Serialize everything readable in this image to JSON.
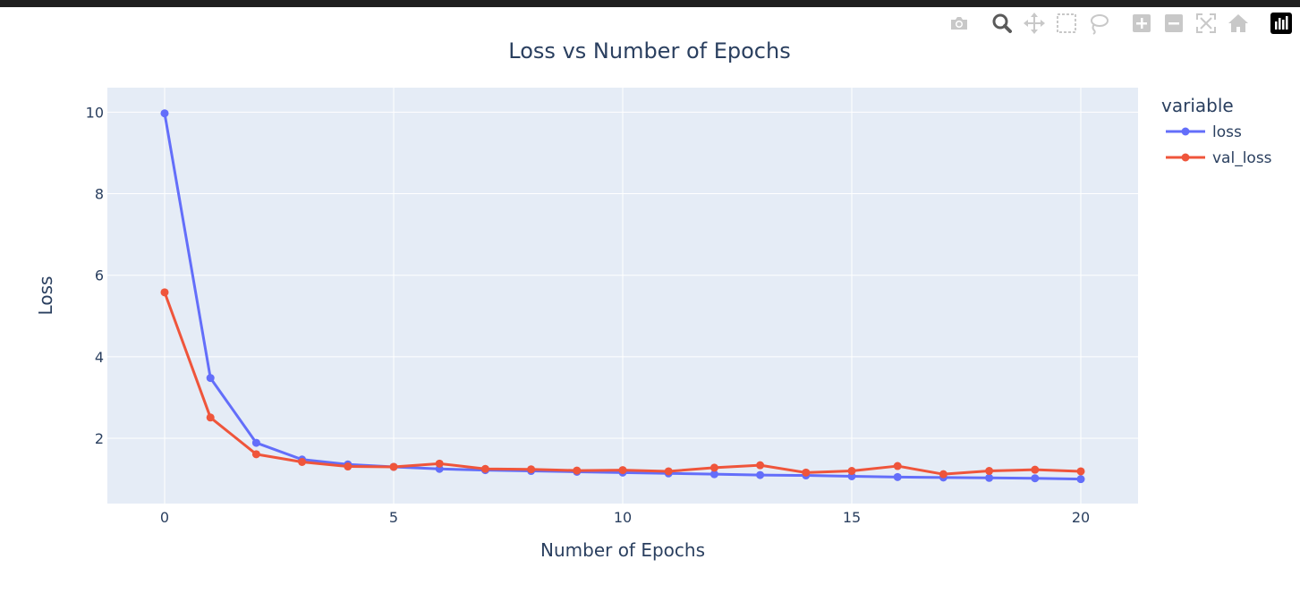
{
  "chart_data": {
    "type": "line",
    "title": "Loss vs Number of Epochs",
    "xlabel": "Number of Epochs",
    "ylabel": "Loss",
    "x": [
      0,
      1,
      2,
      3,
      4,
      5,
      6,
      7,
      8,
      9,
      10,
      11,
      12,
      13,
      14,
      15,
      16,
      17,
      18,
      19,
      20
    ],
    "xlim": [
      -1.25,
      21.25
    ],
    "ylim": [
      0.4,
      10.6
    ],
    "xticks": [
      0,
      5,
      10,
      15,
      20
    ],
    "yticks": [
      2,
      4,
      6,
      8,
      10
    ],
    "grid": true,
    "legend": {
      "title": "variable",
      "position": "right"
    },
    "series": [
      {
        "name": "loss",
        "color": "#636efa",
        "values": [
          9.97,
          3.48,
          1.89,
          1.48,
          1.36,
          1.3,
          1.25,
          1.22,
          1.2,
          1.18,
          1.16,
          1.14,
          1.12,
          1.1,
          1.09,
          1.07,
          1.05,
          1.04,
          1.03,
          1.02,
          1.0
        ]
      },
      {
        "name": "val_loss",
        "color": "#ef553b",
        "values": [
          5.58,
          2.51,
          1.61,
          1.42,
          1.31,
          1.3,
          1.38,
          1.25,
          1.24,
          1.21,
          1.22,
          1.19,
          1.28,
          1.34,
          1.16,
          1.2,
          1.32,
          1.12,
          1.2,
          1.23,
          1.19
        ]
      }
    ]
  },
  "colors": {
    "plot_bg": "#e5ecf6",
    "text": "#2a3f5f",
    "grid": "#ffffff",
    "modebar_icon": "#c8c8c8",
    "modebar_active": "#5a5a5a"
  },
  "modebar": [
    {
      "name": "camera-icon"
    },
    {
      "name": "zoom-icon"
    },
    {
      "name": "pan-icon"
    },
    {
      "name": "box-select-icon"
    },
    {
      "name": "lasso-select-icon"
    },
    {
      "name": "zoom-in-icon"
    },
    {
      "name": "zoom-out-icon"
    },
    {
      "name": "autoscale-icon"
    },
    {
      "name": "reset-axes-icon"
    },
    {
      "name": "plotly-logo-icon"
    }
  ]
}
